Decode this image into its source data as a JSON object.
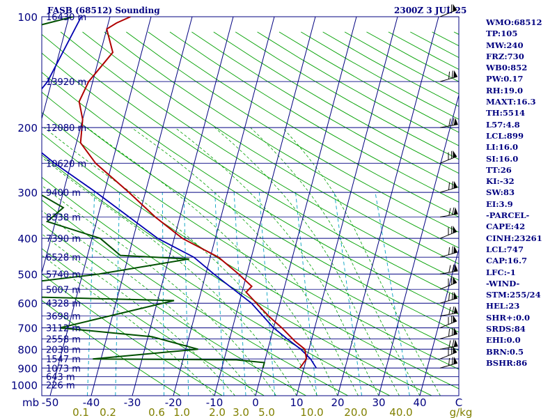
{
  "header": {
    "station": "FASB (68512) Sounding",
    "time": "2300Z  3 JUL 25"
  },
  "stats": [
    "WMO:68512",
    "TP:105",
    "MW:240",
    "FRZ:730",
    "WB0:852",
    "PW:0.17",
    "RH:19.0",
    "MAXT:16.3",
    "TH:5514",
    "L57:4.8",
    "LCL:899",
    "LI:16.0",
    "SI:16.0",
    "TT:26",
    "KI:-32",
    "SW:83",
    "EI:3.9",
    "-PARCEL-",
    "CAPE:42",
    "CINH:23261",
    "LCL:747",
    "CAP:16.7",
    "LFC:-1",
    "-WIND-",
    "STM:255/24",
    "HEL:23",
    "SHR+:0.0",
    "SRDS:84",
    "EHI:0.0",
    "BRN:0.5",
    "BSHR:86"
  ],
  "colors": {
    "isobar": "#000080",
    "isotherm": "#000080",
    "dry_adiabat": "#00a000",
    "moist_adiabat": "#00a000",
    "mixing_ratio": "#00a0c0",
    "temperature": "#b00000",
    "dewpoint": "#005000",
    "parcel": "#0000b0",
    "text": "#000080",
    "axis_temp": "#000080",
    "axis_mix": "#808000",
    "wind_barb": "#000000"
  },
  "chart_data": {
    "type": "skew-t",
    "pressure_ticks": [
      100,
      200,
      300,
      400,
      500,
      600,
      700,
      800,
      900,
      1000
    ],
    "pressure_unit": "mb",
    "temperature_ticks": [
      -50,
      -40,
      -30,
      -20,
      -10,
      0,
      10,
      20,
      30,
      40
    ],
    "temperature_unit": "C",
    "mixing_ratio_ticks": [
      0.1,
      0.2,
      0.6,
      1.0,
      2.0,
      3.0,
      5.0,
      10.0,
      20.0,
      40.0
    ],
    "mixing_ratio_unit": "g/kg",
    "height_labels": [
      {
        "p": 100,
        "label": "16430 m"
      },
      {
        "p": 150,
        "label": "13920 m"
      },
      {
        "p": 200,
        "label": "12080 m"
      },
      {
        "p": 250,
        "label": "10620 m"
      },
      {
        "p": 300,
        "label": "9400 m"
      },
      {
        "p": 350,
        "label": "8338 m"
      },
      {
        "p": 400,
        "label": "7390 m"
      },
      {
        "p": 450,
        "label": "6528 m"
      },
      {
        "p": 500,
        "label": "5740 m"
      },
      {
        "p": 550,
        "label": "5007 m"
      },
      {
        "p": 600,
        "label": "4328 m"
      },
      {
        "p": 650,
        "label": "3698 m"
      },
      {
        "p": 700,
        "label": "3112 m"
      },
      {
        "p": 750,
        "label": "2558 m"
      },
      {
        "p": 800,
        "label": "2038 m"
      },
      {
        "p": 850,
        "label": "1547 m"
      },
      {
        "p": 900,
        "label": "1073 m"
      },
      {
        "p": 950,
        "label": "643 m"
      },
      {
        "p": 1000,
        "label": "226 m"
      }
    ],
    "temperature": [
      {
        "p": 100,
        "t": -55
      },
      {
        "p": 104,
        "t": -58
      },
      {
        "p": 108,
        "t": -60
      },
      {
        "p": 125,
        "t": -57
      },
      {
        "p": 150,
        "t": -61
      },
      {
        "p": 170,
        "t": -62
      },
      {
        "p": 190,
        "t": -60
      },
      {
        "p": 220,
        "t": -59
      },
      {
        "p": 250,
        "t": -54
      },
      {
        "p": 300,
        "t": -44
      },
      {
        "p": 350,
        "t": -36
      },
      {
        "p": 400,
        "t": -28
      },
      {
        "p": 450,
        "t": -18
      },
      {
        "p": 500,
        "t": -12
      },
      {
        "p": 540,
        "t": -8
      },
      {
        "p": 560,
        "t": -9
      },
      {
        "p": 650,
        "t": -2
      },
      {
        "p": 700,
        "t": 2
      },
      {
        "p": 760,
        "t": 6
      },
      {
        "p": 800,
        "t": 9
      },
      {
        "p": 850,
        "t": 10
      },
      {
        "p": 900,
        "t": 9
      }
    ],
    "dewpoint": [
      {
        "p": 100,
        "t": -69
      },
      {
        "p": 108,
        "t": -80
      },
      {
        "p": 130,
        "t": -84
      },
      {
        "p": 150,
        "t": -88
      },
      {
        "p": 170,
        "t": -92
      },
      {
        "p": 200,
        "t": -93
      },
      {
        "p": 215,
        "t": -97
      },
      {
        "p": 235,
        "t": -87
      },
      {
        "p": 290,
        "t": -69
      },
      {
        "p": 330,
        "t": -59
      },
      {
        "p": 360,
        "t": -62
      },
      {
        "p": 400,
        "t": -48
      },
      {
        "p": 445,
        "t": -42
      },
      {
        "p": 455,
        "t": -25
      },
      {
        "p": 500,
        "t": -46
      },
      {
        "p": 540,
        "t": -70
      },
      {
        "p": 570,
        "t": -80
      },
      {
        "p": 590,
        "t": -26
      },
      {
        "p": 700,
        "t": -52
      },
      {
        "p": 740,
        "t": -29
      },
      {
        "p": 800,
        "t": -17
      },
      {
        "p": 850,
        "t": -42
      },
      {
        "p": 855,
        "t": -7
      },
      {
        "p": 870,
        "t": 0
      },
      {
        "p": 900,
        "t": 0
      }
    ],
    "parcel": [
      {
        "p": 100,
        "t": -67
      },
      {
        "p": 150,
        "t": -71
      },
      {
        "p": 200,
        "t": -77
      },
      {
        "p": 250,
        "t": -64
      },
      {
        "p": 300,
        "t": -52
      },
      {
        "p": 400,
        "t": -34
      },
      {
        "p": 450,
        "t": -24
      },
      {
        "p": 500,
        "t": -18
      },
      {
        "p": 600,
        "t": -7
      },
      {
        "p": 700,
        "t": 0
      },
      {
        "p": 750,
        "t": 4
      },
      {
        "p": 800,
        "t": 8
      },
      {
        "p": 850,
        "t": 11
      },
      {
        "p": 900,
        "t": 13
      }
    ],
    "wind_barb_levels": [
      100,
      150,
      200,
      250,
      300,
      350,
      400,
      450,
      500,
      550,
      600,
      650,
      700,
      750,
      800,
      850,
      900
    ]
  }
}
